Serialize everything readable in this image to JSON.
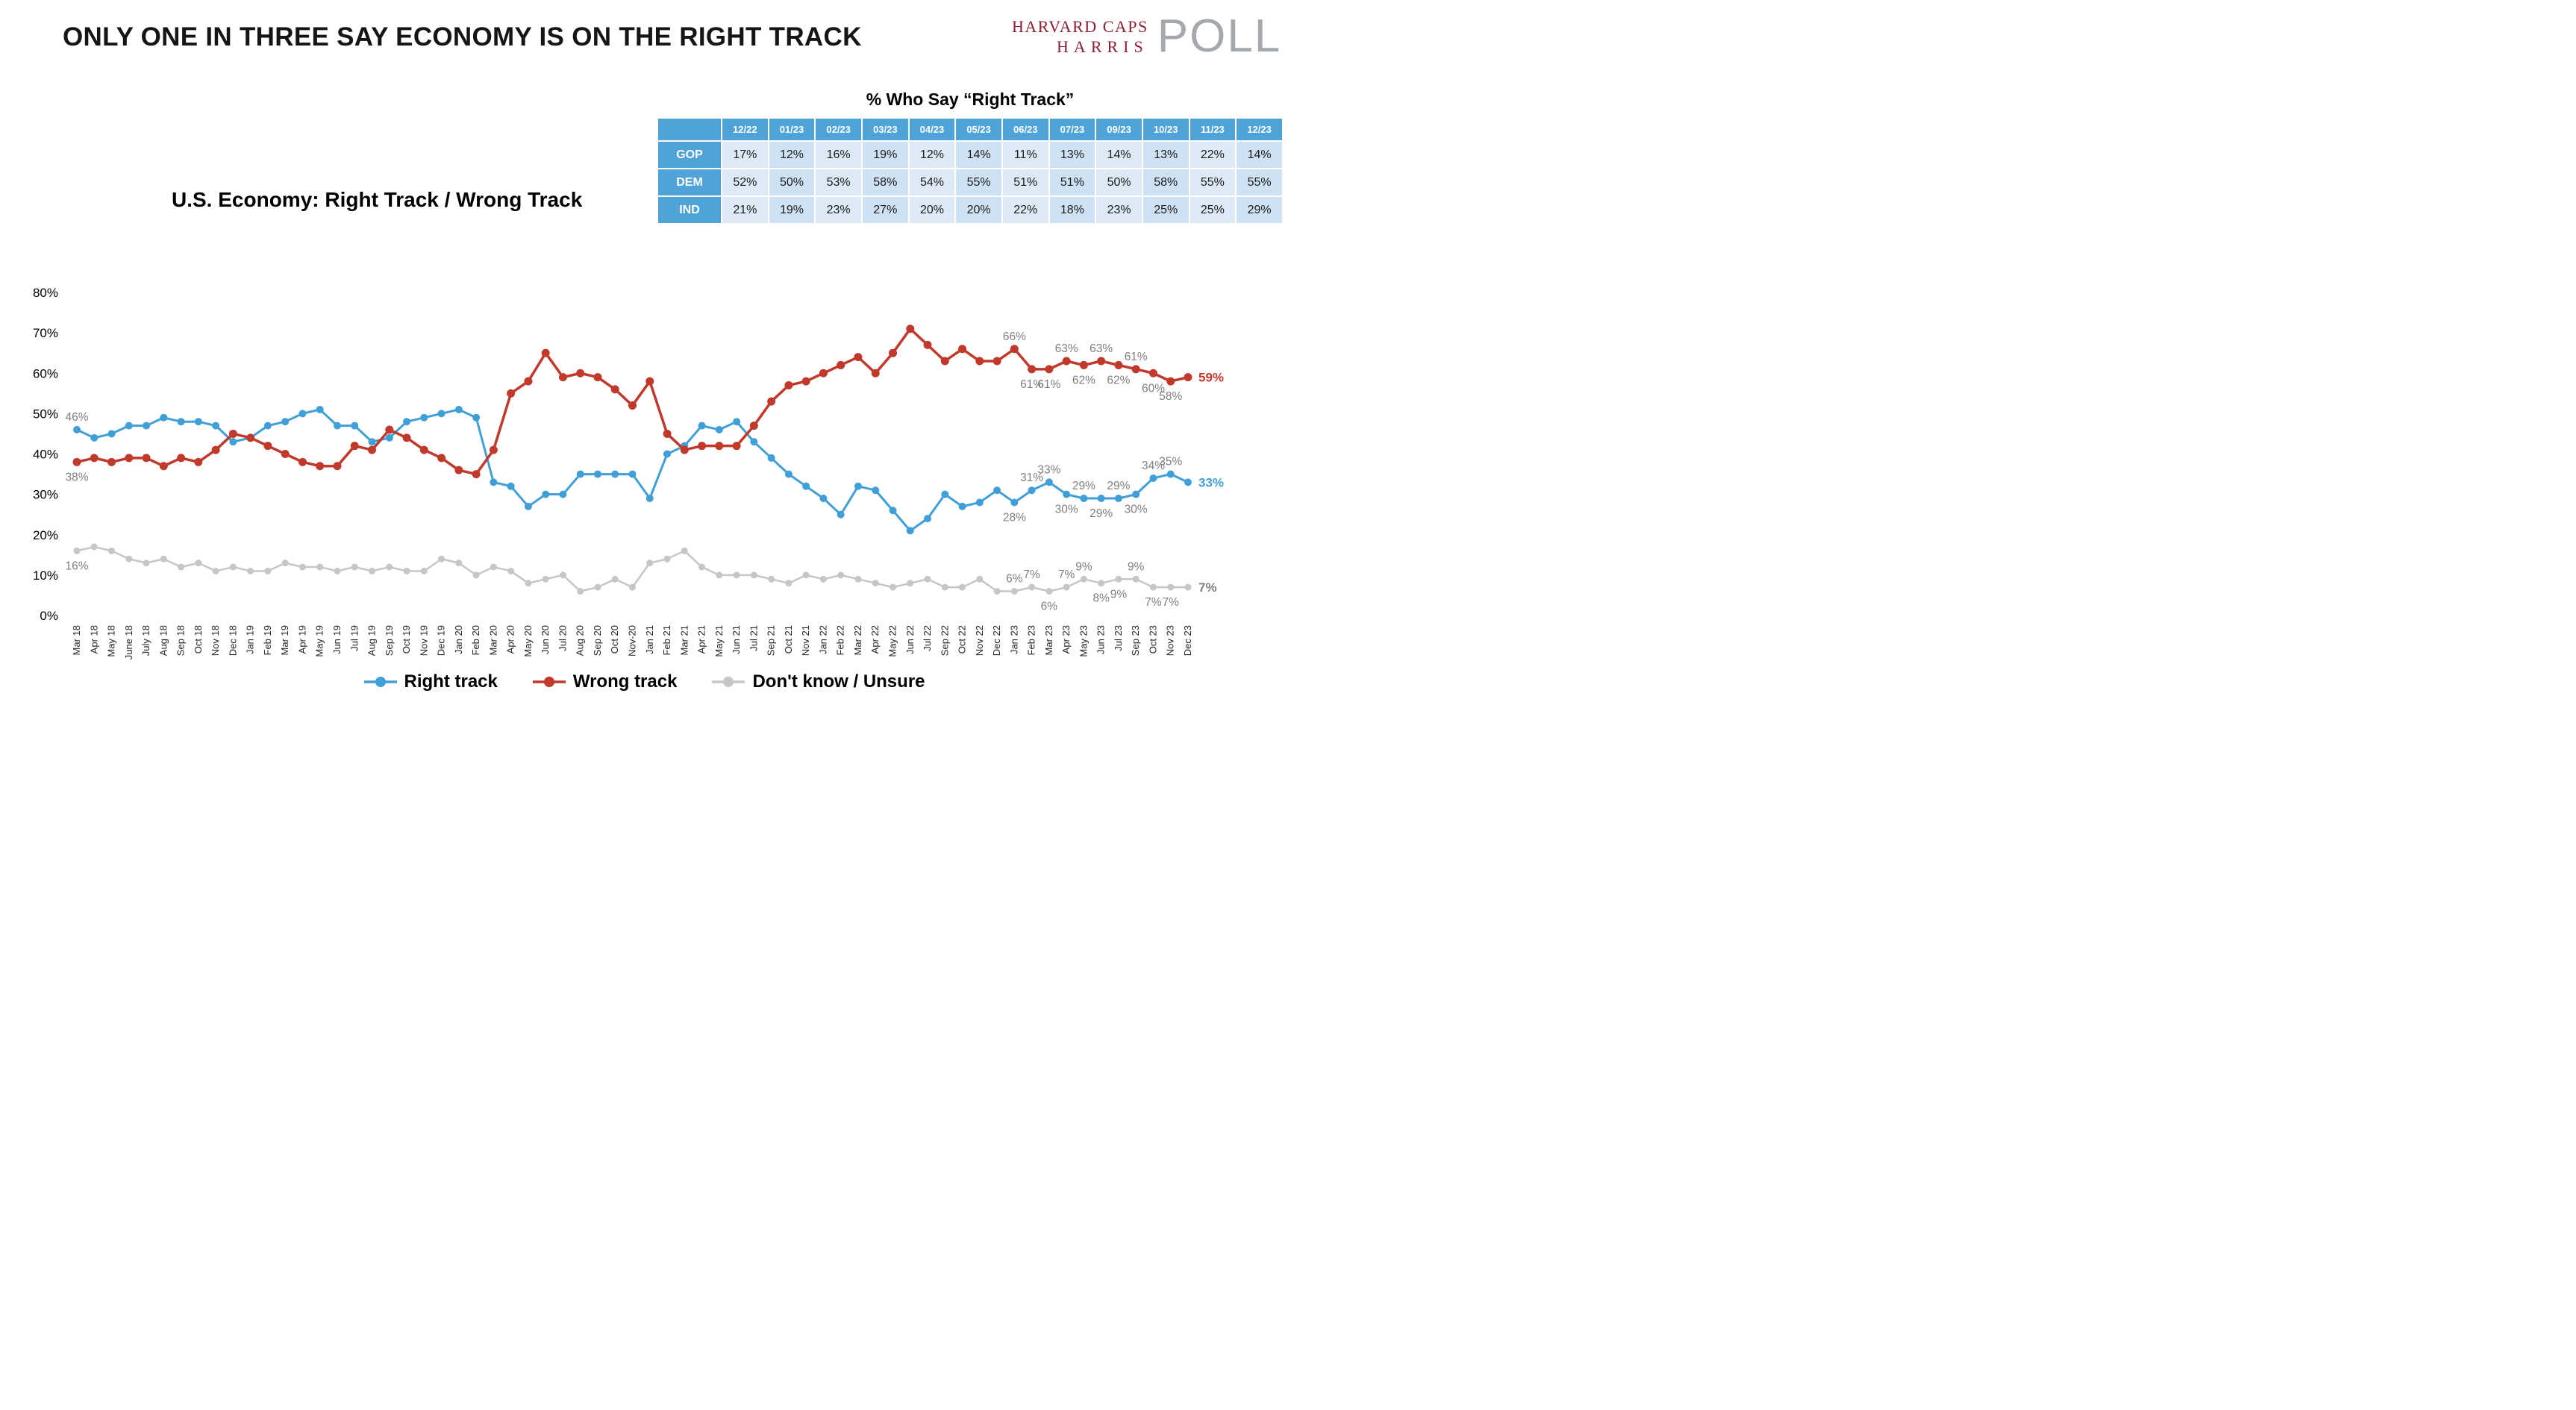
{
  "page": {
    "title": "ONLY ONE IN THREE SAY ECONOMY IS ON THE RIGHT TRACK"
  },
  "logo": {
    "line1": "HARVARD CAPS",
    "line2": "HARRIS",
    "word": "POLL"
  },
  "colors": {
    "right_track_blue": "#3F9FD6",
    "wrong_track_red": "#C0392B",
    "dont_know_gray": "#C6C6C6",
    "table_header_blue": "#4FA3D9",
    "logo_maroon": "#8E1F33",
    "logo_gray": "#A5A9AD",
    "label_gray": "#7f7f7f"
  },
  "table": {
    "title": "% Who Say “Right Track”",
    "columns": [
      "12/22",
      "01/23",
      "02/23",
      "03/23",
      "04/23",
      "05/23",
      "06/23",
      "07/23",
      "09/23",
      "10/23",
      "11/23",
      "12/23"
    ],
    "rows": [
      {
        "label": "GOP",
        "values": [
          "17%",
          "12%",
          "16%",
          "19%",
          "12%",
          "14%",
          "11%",
          "13%",
          "14%",
          "13%",
          "22%",
          "14%"
        ]
      },
      {
        "label": "DEM",
        "values": [
          "52%",
          "50%",
          "53%",
          "58%",
          "54%",
          "55%",
          "51%",
          "51%",
          "50%",
          "58%",
          "55%",
          "55%"
        ]
      },
      {
        "label": "IND",
        "values": [
          "21%",
          "19%",
          "23%",
          "27%",
          "20%",
          "20%",
          "22%",
          "18%",
          "23%",
          "25%",
          "25%",
          "29%"
        ]
      }
    ]
  },
  "chart_data": {
    "type": "line",
    "title": "U.S. Economy: Right Track / Wrong Track",
    "xlabel": "",
    "ylabel": "",
    "ylim": [
      0,
      80
    ],
    "grid": false,
    "legend_position": "bottom",
    "yticks": [
      "0%",
      "10%",
      "20%",
      "30%",
      "40%",
      "50%",
      "60%",
      "70%",
      "80%"
    ],
    "x": [
      "Mar 18",
      "Apr 18",
      "May 18",
      "June 18",
      "July 18",
      "Aug 18",
      "Sep 18",
      "Oct 18",
      "Nov 18",
      "Dec 18",
      "Jan 19",
      "Feb 19",
      "Mar 19",
      "Apr 19",
      "May 19",
      "Jun 19",
      "Jul 19",
      "Aug 19",
      "Sep 19",
      "Oct 19",
      "Nov 19",
      "Dec 19",
      "Jan 20",
      "Feb 20",
      "Mar 20",
      "Apr 20",
      "May 20",
      "Jun 20",
      "Jul 20",
      "Aug 20",
      "Sep 20",
      "Oct 20",
      "Nov-20",
      "Jan 21",
      "Feb 21",
      "Mar 21",
      "Apr 21",
      "May 21",
      "Jun 21",
      "Jul 21",
      "Sep 21",
      "Oct 21",
      "Nov 21",
      "Jan 22",
      "Feb 22",
      "Mar 22",
      "Apr 22",
      "May 22",
      "Jun 22",
      "Jul 22",
      "Sep 22",
      "Oct 22",
      "Nov 22",
      "Dec 22",
      "Jan 23",
      "Feb 23",
      "Mar 23",
      "Apr 23",
      "May 23",
      "Jun 23",
      "Jul 23",
      "Sep 23",
      "Oct 23",
      "Nov 23",
      "Dec 23"
    ],
    "series": [
      {
        "id": "right-track",
        "name": "Right track",
        "color": "#3F9FD6",
        "values": [
          46,
          44,
          45,
          47,
          47,
          49,
          48,
          48,
          47,
          43,
          44,
          47,
          48,
          50,
          51,
          47,
          47,
          43,
          44,
          48,
          49,
          50,
          51,
          49,
          33,
          32,
          27,
          30,
          30,
          35,
          35,
          35,
          35,
          29,
          40,
          42,
          47,
          46,
          48,
          43,
          39,
          35,
          32,
          29,
          25,
          32,
          31,
          26,
          21,
          24,
          30,
          27,
          28,
          31,
          28,
          31,
          33,
          30,
          29,
          29,
          29,
          30,
          34,
          35,
          33
        ]
      },
      {
        "id": "wrong-track",
        "name": "Wrong track",
        "color": "#C0392B",
        "values": [
          38,
          39,
          38,
          39,
          39,
          37,
          39,
          38,
          41,
          45,
          44,
          42,
          40,
          38,
          37,
          37,
          42,
          41,
          46,
          44,
          41,
          39,
          36,
          35,
          41,
          55,
          58,
          65,
          59,
          60,
          59,
          56,
          52,
          58,
          45,
          41,
          42,
          42,
          42,
          47,
          53,
          57,
          58,
          60,
          62,
          64,
          60,
          65,
          71,
          67,
          63,
          66,
          63,
          63,
          66,
          61,
          61,
          63,
          62,
          63,
          62,
          61,
          60,
          58,
          59
        ]
      },
      {
        "id": "dont-know",
        "name": "Don't know / Unsure",
        "color": "#C6C6C6",
        "values": [
          16,
          17,
          16,
          14,
          13,
          14,
          12,
          13,
          11,
          12,
          11,
          11,
          13,
          12,
          12,
          11,
          12,
          11,
          12,
          11,
          11,
          14,
          13,
          10,
          12,
          11,
          8,
          9,
          10,
          6,
          7,
          9,
          7,
          13,
          14,
          16,
          12,
          10,
          10,
          10,
          9,
          8,
          10,
          9,
          10,
          9,
          8,
          7,
          8,
          9,
          7,
          7,
          9,
          6,
          6,
          7,
          6,
          7,
          9,
          8,
          9,
          9,
          7,
          7,
          7
        ]
      }
    ],
    "annotations": [
      {
        "s": 0,
        "i": 0,
        "t": "46%",
        "p": "above"
      },
      {
        "s": 1,
        "i": 0,
        "t": "38%",
        "p": "below"
      },
      {
        "s": 2,
        "i": 0,
        "t": "16%",
        "p": "below"
      },
      {
        "s": 1,
        "i": 54,
        "t": "66%",
        "p": "above"
      },
      {
        "s": 1,
        "i": 55,
        "t": "61%",
        "p": "below"
      },
      {
        "s": 1,
        "i": 56,
        "t": "61%",
        "p": "below"
      },
      {
        "s": 1,
        "i": 57,
        "t": "63%",
        "p": "above"
      },
      {
        "s": 1,
        "i": 58,
        "t": "62%",
        "p": "below"
      },
      {
        "s": 1,
        "i": 59,
        "t": "63%",
        "p": "above"
      },
      {
        "s": 1,
        "i": 60,
        "t": "62%",
        "p": "below"
      },
      {
        "s": 1,
        "i": 61,
        "t": "61%",
        "p": "above"
      },
      {
        "s": 1,
        "i": 62,
        "t": "60%",
        "p": "below"
      },
      {
        "s": 1,
        "i": 63,
        "t": "58%",
        "p": "below"
      },
      {
        "s": 0,
        "i": 54,
        "t": "28%",
        "p": "below"
      },
      {
        "s": 0,
        "i": 55,
        "t": "31%",
        "p": "above"
      },
      {
        "s": 0,
        "i": 56,
        "t": "33%",
        "p": "above"
      },
      {
        "s": 0,
        "i": 57,
        "t": "30%",
        "p": "below"
      },
      {
        "s": 0,
        "i": 58,
        "t": "29%",
        "p": "above"
      },
      {
        "s": 0,
        "i": 59,
        "t": "29%",
        "p": "below"
      },
      {
        "s": 0,
        "i": 60,
        "t": "29%",
        "p": "above"
      },
      {
        "s": 0,
        "i": 61,
        "t": "30%",
        "p": "below"
      },
      {
        "s": 0,
        "i": 62,
        "t": "34%",
        "p": "above"
      },
      {
        "s": 0,
        "i": 63,
        "t": "35%",
        "p": "above"
      },
      {
        "s": 2,
        "i": 54,
        "t": "6%",
        "p": "above"
      },
      {
        "s": 2,
        "i": 55,
        "t": "7%",
        "p": "above"
      },
      {
        "s": 2,
        "i": 56,
        "t": "6%",
        "p": "below"
      },
      {
        "s": 2,
        "i": 57,
        "t": "7%",
        "p": "above"
      },
      {
        "s": 2,
        "i": 58,
        "t": "9%",
        "p": "above"
      },
      {
        "s": 2,
        "i": 59,
        "t": "8%",
        "p": "below"
      },
      {
        "s": 2,
        "i": 60,
        "t": "9%",
        "p": "below"
      },
      {
        "s": 2,
        "i": 61,
        "t": "9%",
        "p": "above"
      },
      {
        "s": 2,
        "i": 62,
        "t": "7%",
        "p": "below"
      },
      {
        "s": 2,
        "i": 63,
        "t": "7%",
        "p": "below"
      }
    ],
    "end_labels": [
      {
        "s": 1,
        "t": "59%",
        "color": "#C0392B"
      },
      {
        "s": 0,
        "t": "33%",
        "color": "#3F9FD6"
      },
      {
        "s": 2,
        "t": "7%",
        "color": "#7f7f7f"
      }
    ]
  }
}
